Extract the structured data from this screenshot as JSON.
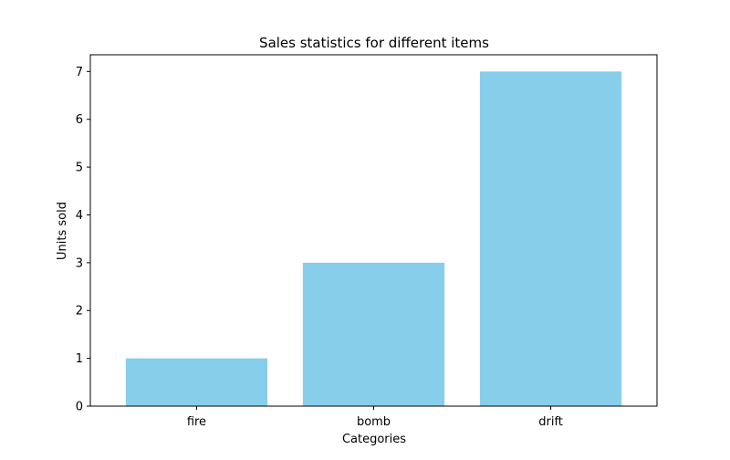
{
  "chart_data": {
    "type": "bar",
    "title": "Sales statistics for different items",
    "xlabel": "Categories",
    "ylabel": "Units sold",
    "categories": [
      "fire",
      "bomb",
      "drift"
    ],
    "values": [
      1,
      3,
      7
    ],
    "ylim": [
      0,
      7.35
    ],
    "yticks": [
      0,
      1,
      2,
      3,
      4,
      5,
      6,
      7
    ],
    "grid": false,
    "legend": "none",
    "bar_color": "#87ceeb"
  }
}
